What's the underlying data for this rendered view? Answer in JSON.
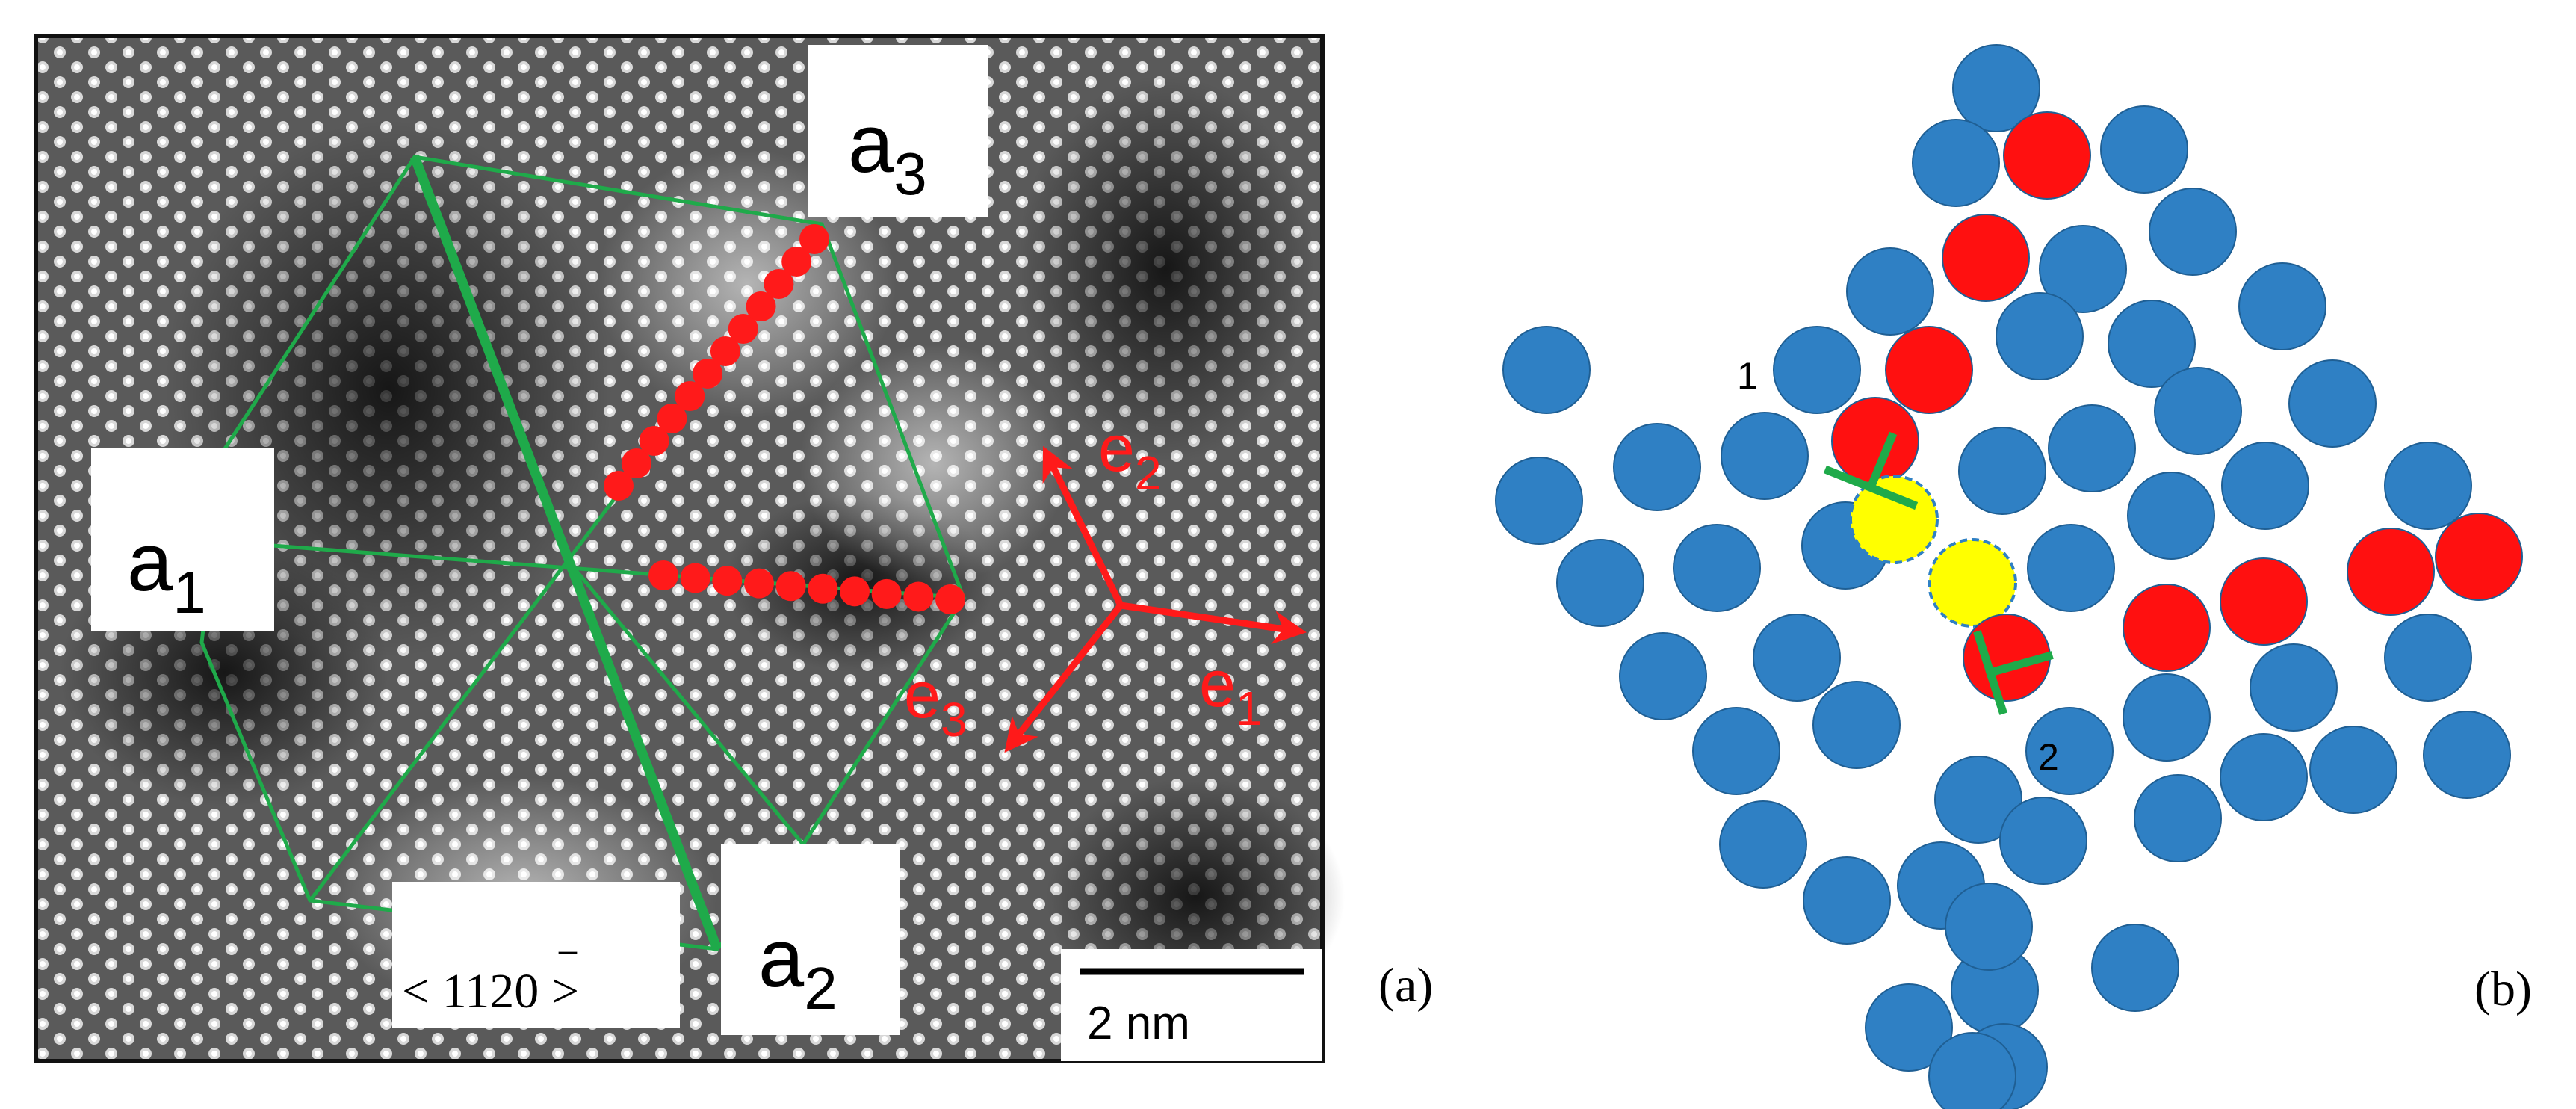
{
  "panel_a": {
    "panel_label": "(a)",
    "labels": {
      "a1": {
        "main": "a",
        "sub": "1"
      },
      "a2": {
        "main": "a",
        "sub": "2"
      },
      "a3": {
        "main": "a",
        "sub": "3"
      }
    },
    "direction_label": {
      "bar": "_",
      "text": "< 1120 >"
    },
    "vectors": {
      "e1": {
        "main": "e",
        "sub": "1"
      },
      "e2": {
        "main": "e",
        "sub": "2"
      },
      "e3": {
        "main": "e",
        "sub": "3"
      }
    },
    "scale_bar_label": "2 nm",
    "colors": {
      "lines": "#1faa4a",
      "vectors": "#ff1a1a",
      "dots": "#ff1a1a"
    }
  },
  "panel_b": {
    "panel_label": "(b)",
    "marker_1": "1",
    "marker_2": "2",
    "colors": {
      "matrix_atom": "#2f80c4",
      "red_atom": "#ff1010",
      "yellow_atom": "#ffff00",
      "dislocation": "#1faa4a"
    }
  }
}
